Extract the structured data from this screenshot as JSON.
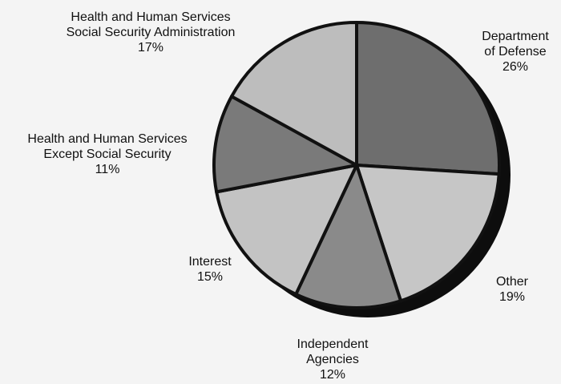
{
  "chart_data": {
    "type": "pie",
    "title": "",
    "slices": [
      {
        "label_lines": [
          "Department",
          "of Defense"
        ],
        "value_label": "26%",
        "value": 26,
        "color": "#6e6e6e"
      },
      {
        "label_lines": [
          "Other"
        ],
        "value_label": "19%",
        "value": 19,
        "color": "#c6c6c6"
      },
      {
        "label_lines": [
          "Independent",
          "Agencies"
        ],
        "value_label": "12%",
        "value": 12,
        "color": "#8a8a8a"
      },
      {
        "label_lines": [
          "Interest"
        ],
        "value_label": "15%",
        "value": 15,
        "color": "#c3c3c3"
      },
      {
        "label_lines": [
          "Health and Human Services",
          "Except Social Security"
        ],
        "value_label": "11%",
        "value": 11,
        "color": "#7a7a7a"
      },
      {
        "label_lines": [
          "Health and Human Services",
          "Social Security Administration"
        ],
        "value_label": "17%",
        "value": 17,
        "color": "#bdbdbd"
      }
    ]
  }
}
